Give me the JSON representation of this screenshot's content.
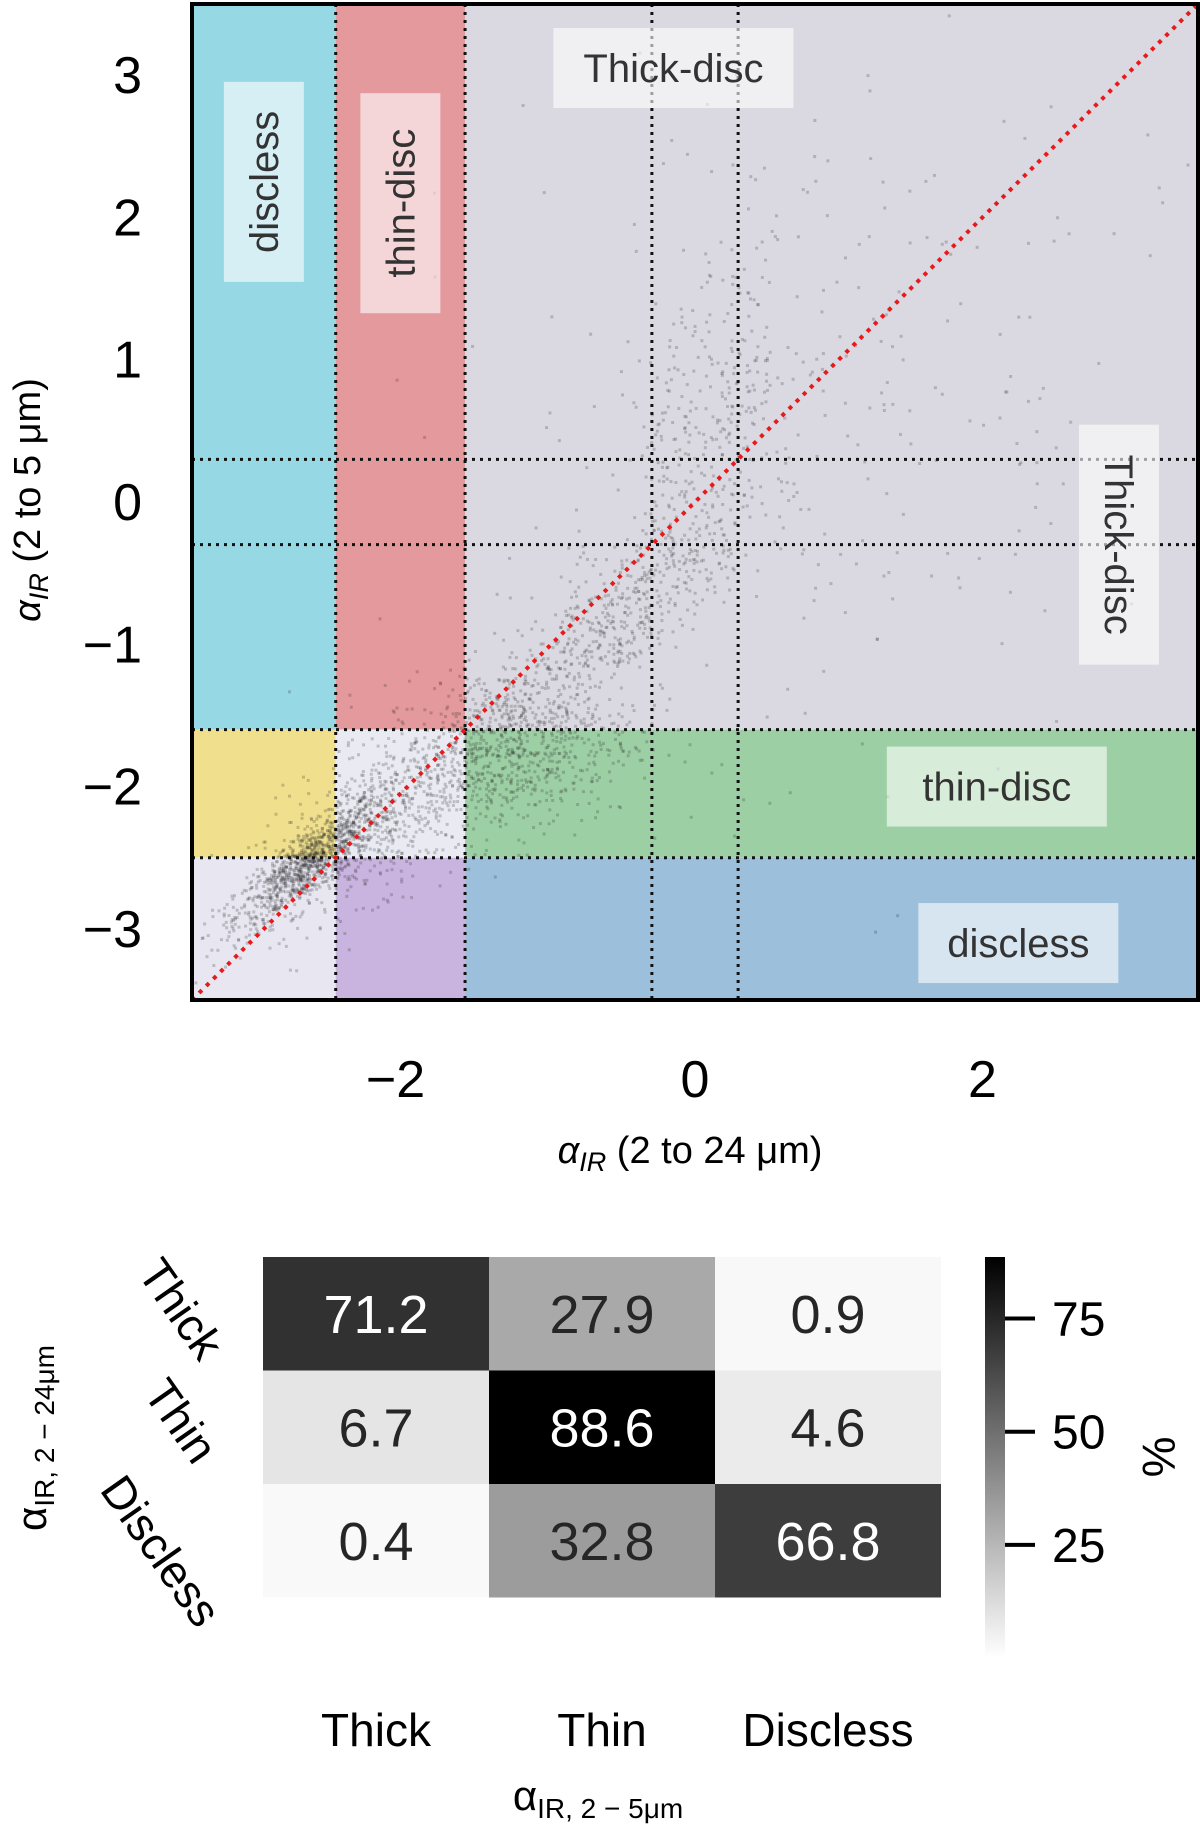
{
  "chart_data": [
    {
      "type": "scatter",
      "title": "",
      "xlabel": {
        "symbol": "α",
        "sub": "IR",
        "rest": " (2 to 24 μm)"
      },
      "ylabel": {
        "symbol": "α",
        "sub": "IR",
        "rest": " (2 to 5 μm)"
      },
      "xlim": [
        -3.5,
        3.5
      ],
      "ylim": [
        -3.5,
        3.5
      ],
      "xticks": [
        -2,
        0,
        2
      ],
      "yticks": [
        3,
        2,
        1,
        0,
        -1,
        -2,
        -3
      ],
      "xtick_labels": [
        "−2",
        "0",
        "2"
      ],
      "ytick_labels": [
        "3",
        "2",
        "1",
        "0",
        "−1",
        "−2",
        "−3"
      ],
      "vertical_dividers": [
        -2.5,
        -1.6,
        -0.3,
        0.3
      ],
      "horizontal_dividers": [
        0.3,
        -0.3,
        -1.6,
        -2.5
      ],
      "diagonal_line": {
        "from": [
          -3.5,
          -3.5
        ],
        "to": [
          3.5,
          3.5
        ],
        "color": "#e8191a",
        "style": "dotted"
      },
      "regions": [
        {
          "name": "discless (x)",
          "x": [
            -3.5,
            -2.5
          ],
          "y": [
            -1.6,
            3.5
          ],
          "color": "#96d8e4"
        },
        {
          "name": "thin-disc (x)",
          "x": [
            -2.5,
            -1.6
          ],
          "y": [
            -1.6,
            3.5
          ],
          "color": "#e4999d"
        },
        {
          "name": "thick-disc (both)",
          "x": [
            -1.6,
            3.5
          ],
          "y": [
            -1.6,
            3.5
          ],
          "color": "#dad9e1"
        },
        {
          "name": "discless x / thin y",
          "x": [
            -3.5,
            -2.5
          ],
          "y": [
            -2.5,
            -1.6
          ],
          "color": "#f0e08e"
        },
        {
          "name": "thin-disc (both)",
          "x": [
            -2.5,
            -1.6
          ],
          "y": [
            -2.5,
            -1.6
          ],
          "color": "#eaeaf2"
        },
        {
          "name": "thin-disc (y)",
          "x": [
            -1.6,
            3.5
          ],
          "y": [
            -2.5,
            -1.6
          ],
          "color": "#9dcfa4"
        },
        {
          "name": "discless (both)",
          "x": [
            -3.5,
            -2.5
          ],
          "y": [
            -3.5,
            -2.5
          ],
          "color": "#e8e7f1"
        },
        {
          "name": "thin x / discless y",
          "x": [
            -2.5,
            -1.6
          ],
          "y": [
            -3.5,
            -2.5
          ],
          "color": "#c8b4df"
        },
        {
          "name": "discless (y)",
          "x": [
            -1.6,
            3.5
          ],
          "y": [
            -3.5,
            -2.5
          ],
          "color": "#9cbfdb"
        }
      ],
      "region_labels": [
        {
          "text": "discless",
          "x": -3.0,
          "y": 2.25,
          "rotate": -90
        },
        {
          "text": "thin-disc",
          "x": -2.05,
          "y": 2.1,
          "rotate": -90
        },
        {
          "text": "Thick-disc",
          "x": -0.15,
          "y": 3.05,
          "rotate": 0
        },
        {
          "text": "Thick-disc",
          "x": 2.95,
          "y": -0.3,
          "rotate": 90
        },
        {
          "text": "thin-disc",
          "x": 2.1,
          "y": -2.0,
          "rotate": 0
        },
        {
          "text": "discless",
          "x": 2.25,
          "y": -3.1,
          "rotate": 0
        }
      ],
      "point_clusters": [
        {
          "center": [
            -2.7,
            -2.55
          ],
          "sx": 0.25,
          "sy": 0.22,
          "count": 900,
          "corr": 0.85
        },
        {
          "center": [
            -2.2,
            -2.25
          ],
          "sx": 0.45,
          "sy": 0.35,
          "count": 700,
          "corr": 0.7
        },
        {
          "center": [
            -1.3,
            -1.75
          ],
          "sx": 0.45,
          "sy": 0.3,
          "count": 700,
          "corr": 0.2
        },
        {
          "center": [
            -0.6,
            -0.9
          ],
          "sx": 0.5,
          "sy": 0.5,
          "count": 600,
          "corr": 0.85
        },
        {
          "center": [
            0.1,
            0.6
          ],
          "sx": 0.35,
          "sy": 0.6,
          "count": 300,
          "corr": 0.5
        },
        {
          "center": [
            0.9,
            0.5
          ],
          "sx": 1.2,
          "sy": 1.5,
          "count": 250,
          "corr": 0.2
        }
      ],
      "point_color": "#222222"
    },
    {
      "type": "heatmap",
      "row_axis_label": {
        "symbol": "α",
        "sub": "IR, 2 − 24μm"
      },
      "col_axis_label": {
        "symbol": "α",
        "sub": "IR, 2 − 5μm"
      },
      "row_labels": [
        "Thick",
        "Thin",
        "Discless"
      ],
      "col_labels": [
        "Thick",
        "Thin",
        "Discless"
      ],
      "values": [
        [
          71.2,
          27.9,
          0.9
        ],
        [
          6.7,
          88.6,
          4.6
        ],
        [
          0.4,
          32.8,
          66.8
        ]
      ],
      "cell_text": [
        [
          "71.2",
          "27.9",
          "0.9"
        ],
        [
          "6.7",
          "88.6",
          "4.6"
        ],
        [
          "0.4",
          "32.8",
          "66.8"
        ]
      ],
      "colormap": "greys",
      "vmin": 0,
      "vmax": 88.6,
      "colorbar": {
        "ticks": [
          75,
          50,
          25
        ],
        "tick_labels": [
          "75",
          "50",
          "25"
        ],
        "label": "%"
      }
    }
  ]
}
